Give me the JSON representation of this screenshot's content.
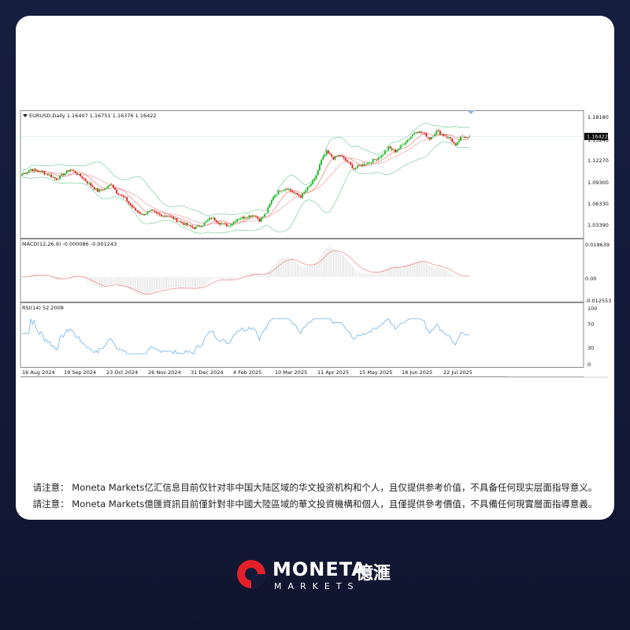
{
  "chart_data": {
    "type": "candlestick",
    "symbol_header": "EURUSD,Daily  1.16407 1.16751 1.16376 1.16422",
    "last_price_label": "1.16422",
    "last_price": 1.16422,
    "x_tick_labels": [
      "16 Aug 2024",
      "19 Sep 2024",
      "23 Oct 2024",
      "26 Nov 2024",
      "31 Dec 2024",
      "4 Feb 2025",
      "10 Mar 2025",
      "11 Apr 2025",
      "15 May 2025",
      "18 Jun 2025",
      "22 Jul 2025"
    ],
    "price_panel": {
      "y_ticks": [
        "1.18180",
        "1.15240",
        "1.12270",
        "1.09300",
        "1.06330",
        "1.03390"
      ],
      "ylim": [
        1.02,
        1.195
      ],
      "indicators": [
        "Bollinger Bands",
        "Moving Average"
      ],
      "anchors": [
        [
          0,
          1.11
        ],
        [
          5,
          1.117
        ],
        [
          10,
          1.114
        ],
        [
          15,
          1.11
        ],
        [
          20,
          1.103
        ],
        [
          25,
          1.112
        ],
        [
          28,
          1.117
        ],
        [
          32,
          1.111
        ],
        [
          36,
          1.103
        ],
        [
          40,
          1.094
        ],
        [
          44,
          1.086
        ],
        [
          48,
          1.089
        ],
        [
          52,
          1.096
        ],
        [
          55,
          1.084
        ],
        [
          60,
          1.075
        ],
        [
          65,
          1.06
        ],
        [
          70,
          1.052
        ],
        [
          75,
          1.057
        ],
        [
          80,
          1.052
        ],
        [
          85,
          1.05
        ],
        [
          90,
          1.044
        ],
        [
          95,
          1.038
        ],
        [
          100,
          1.033
        ],
        [
          105,
          1.038
        ],
        [
          110,
          1.048
        ],
        [
          115,
          1.04
        ],
        [
          120,
          1.036
        ],
        [
          125,
          1.046
        ],
        [
          130,
          1.049
        ],
        [
          135,
          1.052
        ],
        [
          138,
          1.044
        ],
        [
          142,
          1.055
        ],
        [
          146,
          1.078
        ],
        [
          150,
          1.087
        ],
        [
          154,
          1.09
        ],
        [
          158,
          1.083
        ],
        [
          162,
          1.078
        ],
        [
          166,
          1.09
        ],
        [
          170,
          1.102
        ],
        [
          174,
          1.13
        ],
        [
          177,
          1.142
        ],
        [
          181,
          1.133
        ],
        [
          185,
          1.137
        ],
        [
          189,
          1.128
        ],
        [
          193,
          1.118
        ],
        [
          197,
          1.123
        ],
        [
          201,
          1.126
        ],
        [
          205,
          1.131
        ],
        [
          209,
          1.137
        ],
        [
          213,
          1.148
        ],
        [
          217,
          1.143
        ],
        [
          221,
          1.152
        ],
        [
          225,
          1.162
        ],
        [
          229,
          1.172
        ],
        [
          233,
          1.169
        ],
        [
          237,
          1.161
        ],
        [
          241,
          1.172
        ],
        [
          245,
          1.166
        ],
        [
          249,
          1.161
        ],
        [
          252,
          1.15
        ],
        [
          255,
          1.163
        ],
        [
          258,
          1.164
        ],
        [
          260,
          1.164
        ]
      ]
    },
    "macd_panel": {
      "label": "MACD(12,26,9) -0.000086 -0.001243",
      "y_ticks": [
        "0.019639",
        "0.00",
        "-0.012553"
      ],
      "ylim": [
        -0.0136,
        0.0205
      ]
    },
    "rsi_panel": {
      "label": "RSI(14) 52.2008",
      "y_ticks": [
        "100",
        "70",
        "30",
        "0"
      ],
      "ylim": [
        0,
        100
      ]
    }
  },
  "disclaimer": {
    "simplified": "请注意： Moneta Markets亿汇信息目前仅针对非中国大陆区域的华文投资机构和个人，且仅提供参考价值，不具备任何现实层面指导意义。",
    "traditional": "請注意： Moneta Markets億匯資訊目前僅針對非中國大陸區域的華文投資機構和個人，且僅提供參考價值，不具備任何現實層面指導意義。"
  },
  "brand": {
    "name": "MONETA",
    "chinese": "億滙",
    "sub": "MARKETS",
    "accent": "#e3202a"
  }
}
